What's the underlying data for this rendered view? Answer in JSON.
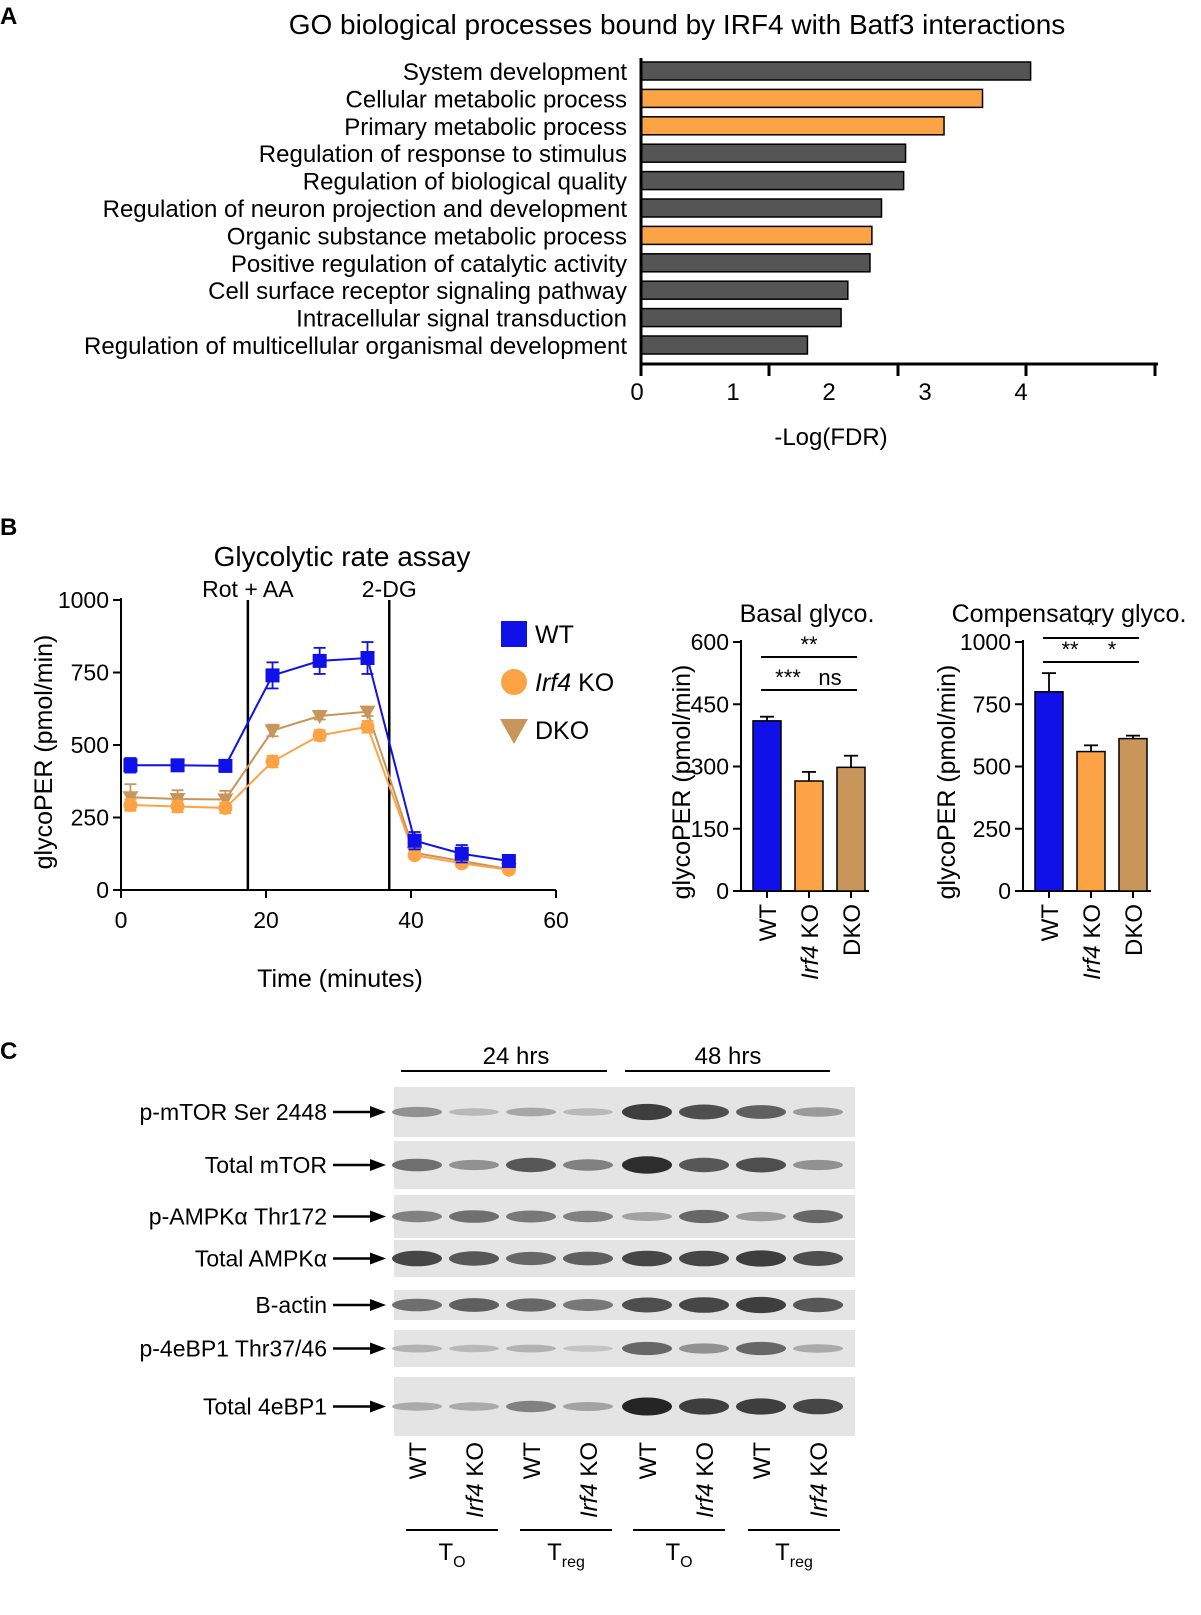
{
  "colors": {
    "gray": "#555555",
    "orange": "#fca345",
    "blue": "#1010e8",
    "tan": "#c8955a",
    "axis": "#000000"
  },
  "panel_labels": [
    "A",
    "B",
    "C"
  ],
  "chart_data": [
    {
      "id": "panel-a",
      "type": "bar",
      "orientation": "horizontal",
      "title": "GO biological processes bound by IRF4 with Batf3 interactions",
      "xlabel": "-Log(FDR)",
      "xlim": [
        0,
        5.5
      ],
      "xticks": [
        0,
        1,
        2,
        3,
        4
      ],
      "categories": [
        "System development",
        "Cellular metabolic process",
        "Primary metabolic process",
        "Regulation of response to stimulus",
        "Regulation of biological quality",
        "Regulation of neuron projection and development",
        "Organic substance metabolic process",
        "Positive regulation of catalytic activity",
        "Cell surface receptor signaling pathway",
        "Intracellular signal transduction",
        "Regulation of multicellular organismal development"
      ],
      "values": [
        4.05,
        3.55,
        3.15,
        2.75,
        2.73,
        2.5,
        2.4,
        2.38,
        2.15,
        2.08,
        1.73
      ],
      "highlight": [
        false,
        true,
        true,
        false,
        false,
        false,
        true,
        false,
        false,
        false,
        false
      ]
    },
    {
      "id": "panel-b-line",
      "type": "line",
      "title": "Glycolytic rate assay",
      "xlabel": "Time (minutes)",
      "ylabel": "glycoPER (pmol/min)",
      "xlim": [
        0,
        60
      ],
      "ylim": [
        0,
        1000
      ],
      "xticks": [
        0,
        20,
        40,
        60
      ],
      "yticks": [
        0,
        250,
        500,
        750,
        1000
      ],
      "injections": [
        {
          "x": 17.5,
          "label": "Rot + AA"
        },
        {
          "x": 37,
          "label": "2-DG"
        }
      ],
      "x": [
        1.3,
        7.8,
        14.4,
        20.9,
        27.4,
        34.0,
        40.5,
        47.0,
        53.5
      ],
      "series": [
        {
          "name": "WT",
          "marker": "square",
          "values": [
            430,
            430,
            428,
            740,
            790,
            800,
            170,
            125,
            100
          ],
          "errors": [
            25,
            20,
            20,
            45,
            45,
            55,
            30,
            30,
            20
          ]
        },
        {
          "name": "Irf4 KO",
          "name_italic": "Irf4",
          "name_rest": " KO",
          "marker": "circle",
          "values": [
            293,
            288,
            283,
            443,
            533,
            563,
            120,
            92,
            70
          ],
          "errors": [
            20,
            20,
            18,
            20,
            18,
            20,
            12,
            12,
            10
          ]
        },
        {
          "name": "DKO",
          "marker": "triangle",
          "values": [
            320,
            314,
            312,
            550,
            600,
            615,
            128,
            100,
            72
          ],
          "errors": [
            45,
            30,
            30,
            20,
            12,
            15,
            15,
            15,
            10
          ]
        }
      ]
    },
    {
      "id": "panel-b-basal",
      "type": "bar",
      "title": "Basal glyco.",
      "ylabel": "glycoPER (pmol/min)",
      "ylim": [
        0,
        600
      ],
      "yticks": [
        0,
        150,
        300,
        450,
        600
      ],
      "categories": [
        "WT",
        "Irf4 KO",
        "DKO"
      ],
      "values": [
        410,
        265,
        298
      ],
      "errors": [
        10,
        22,
        28
      ],
      "significance": [
        {
          "pair": [
            0,
            2
          ],
          "label": "**"
        },
        {
          "pair": [
            0,
            1
          ],
          "label": "***"
        },
        {
          "pair": [
            1,
            2
          ],
          "label": "ns"
        }
      ]
    },
    {
      "id": "panel-b-comp",
      "type": "bar",
      "title": "Compensatory glyco.",
      "ylabel": "glycoPER (pmol/min)",
      "ylim": [
        0,
        1000
      ],
      "yticks": [
        0,
        250,
        500,
        750,
        1000
      ],
      "categories": [
        "WT",
        "Irf4 KO",
        "DKO"
      ],
      "values": [
        800,
        560,
        612
      ],
      "errors": [
        75,
        25,
        12
      ],
      "significance": [
        {
          "pair": [
            0,
            2
          ],
          "label": "*"
        },
        {
          "pair": [
            0,
            1
          ],
          "label": "**"
        },
        {
          "pair": [
            1,
            2
          ],
          "label": "*"
        }
      ]
    }
  ],
  "blot": {
    "timepoints": [
      "24 hrs",
      "48 hrs"
    ],
    "rows": [
      {
        "label": "p-mTOR Ser 2448",
        "intensity": [
          0.35,
          0.12,
          0.22,
          0.12,
          0.85,
          0.75,
          0.65,
          0.3
        ]
      },
      {
        "label": "Total mTOR",
        "intensity": [
          0.55,
          0.35,
          0.7,
          0.45,
          0.95,
          0.7,
          0.75,
          0.35
        ]
      },
      {
        "label": "p-AMPKα Thr172",
        "intensity": [
          0.45,
          0.55,
          0.5,
          0.45,
          0.25,
          0.6,
          0.3,
          0.6
        ]
      },
      {
        "label": "Total AMPKα",
        "intensity": [
          0.8,
          0.7,
          0.6,
          0.65,
          0.8,
          0.8,
          0.85,
          0.75
        ]
      },
      {
        "label": "B-actin",
        "intensity": [
          0.55,
          0.65,
          0.6,
          0.5,
          0.75,
          0.8,
          0.85,
          0.7
        ]
      },
      {
        "label": "p-4eBP1 Thr37/46",
        "intensity": [
          0.15,
          0.12,
          0.15,
          0.05,
          0.6,
          0.35,
          0.6,
          0.2
        ]
      },
      {
        "label": "Total 4eBP1",
        "intensity": [
          0.2,
          0.2,
          0.45,
          0.25,
          1.0,
          0.85,
          0.85,
          0.8
        ]
      }
    ],
    "lanes": [
      {
        "label": "WT",
        "italic": false
      },
      {
        "label": "KO",
        "italic_prefix": "Irf4 "
      },
      {
        "label": "WT",
        "italic": false
      },
      {
        "label": "KO",
        "italic_prefix": "Irf4 "
      },
      {
        "label": "WT",
        "italic": false
      },
      {
        "label": "KO",
        "italic_prefix": "Irf4 "
      },
      {
        "label": "WT",
        "italic": false
      },
      {
        "label": "KO",
        "italic_prefix": "Irf4 "
      }
    ],
    "groups": [
      {
        "main": "T",
        "sub": "O"
      },
      {
        "main": "T",
        "sub": "reg"
      },
      {
        "main": "T",
        "sub": "O"
      },
      {
        "main": "T",
        "sub": "reg"
      }
    ]
  }
}
